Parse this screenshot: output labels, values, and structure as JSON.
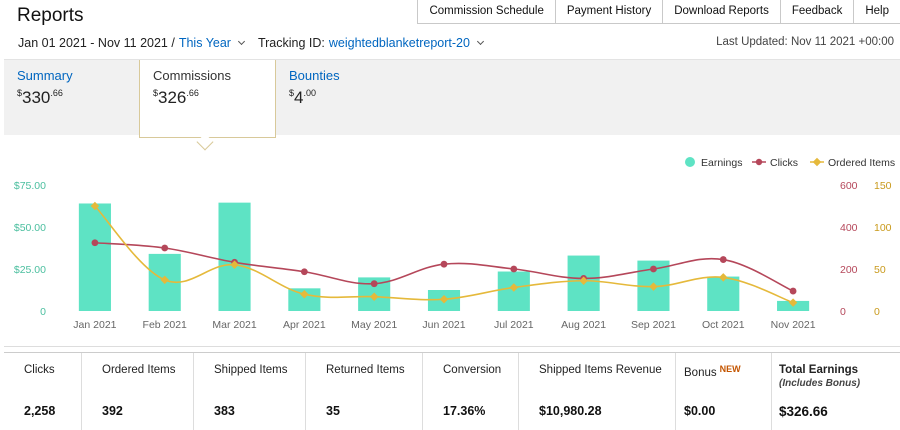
{
  "header": {
    "title": "Reports"
  },
  "nav": [
    "Commission Schedule",
    "Payment History",
    "Download Reports",
    "Feedback",
    "Help"
  ],
  "filters": {
    "date_range": "Jan 01 2021 - Nov 11 2021 /",
    "period": "This Year",
    "tracking_label": "Tracking ID:",
    "tracking_id": "weightedblanketreport-20",
    "last_updated": "Last Updated: Nov 11 2021 +00:00"
  },
  "tabs": [
    {
      "label": "Summary",
      "currency": "$",
      "whole": "330",
      "cents": ".66"
    },
    {
      "label": "Commissions",
      "currency": "$",
      "whole": "326",
      "cents": ".66"
    },
    {
      "label": "Bounties",
      "currency": "$",
      "whole": "4",
      "cents": ".00"
    }
  ],
  "stats": {
    "clicks": {
      "label": "Clicks",
      "value": "2,258"
    },
    "ordered": {
      "label": "Ordered Items",
      "value": "392"
    },
    "shipped": {
      "label": "Shipped Items",
      "value": "383"
    },
    "returned": {
      "label": "Returned Items",
      "value": "35"
    },
    "conversion": {
      "label": "Conversion",
      "value": "17.36%"
    },
    "revenue": {
      "label": "Shipped Items Revenue",
      "value": "$10,980.28"
    },
    "bonus": {
      "label": "Bonus",
      "badge": "NEW",
      "value": "$0.00"
    },
    "total": {
      "label": "Total Earnings",
      "sublabel": "(Includes Bonus)",
      "value": "$326.66"
    }
  },
  "colors": {
    "earnings": "#5ee3c4",
    "clicks": "#b5475a",
    "ordered": "#e5b93b",
    "link": "#0066c0"
  },
  "chart_data": {
    "type": "bar",
    "categories": [
      "Jan 2021",
      "Feb 2021",
      "Mar 2021",
      "Apr 2021",
      "May 2021",
      "Jun 2021",
      "Jul 2021",
      "Aug 2021",
      "Sep 2021",
      "Oct 2021",
      "Nov 2021"
    ],
    "series": [
      {
        "name": "Earnings",
        "type": "bar",
        "axis": "left",
        "values": [
          64,
          34,
          64.5,
          13.5,
          20,
          12.5,
          23.5,
          33,
          30,
          20.5,
          6
        ]
      },
      {
        "name": "Clicks",
        "type": "line",
        "axis": "right1",
        "values": [
          325,
          300,
          232,
          187,
          130,
          223,
          200,
          155,
          200,
          245,
          95
        ]
      },
      {
        "name": "Ordered Items",
        "type": "line",
        "axis": "right2",
        "values": [
          125,
          37,
          55,
          20,
          17,
          14,
          28,
          36,
          29,
          40,
          10
        ]
      }
    ],
    "axes": {
      "left": {
        "ticks": [
          "0",
          "$25.00",
          "$50.00",
          "$75.00"
        ],
        "range": [
          0,
          75
        ]
      },
      "right1": {
        "ticks": [
          "0",
          "200",
          "400",
          "600"
        ],
        "range": [
          0,
          600
        ]
      },
      "right2": {
        "ticks": [
          "0",
          "50",
          "100",
          "150"
        ],
        "range": [
          0,
          150
        ]
      }
    },
    "legend": "top-right",
    "grid": false
  }
}
